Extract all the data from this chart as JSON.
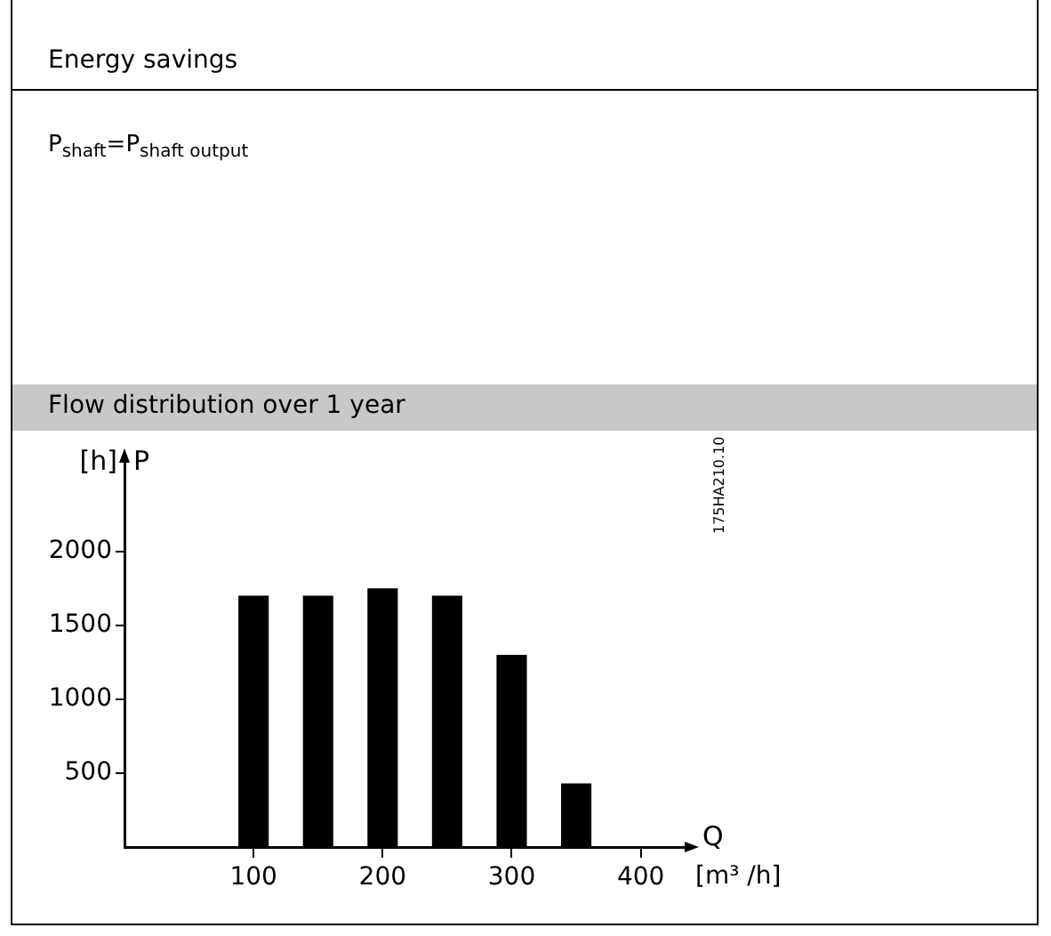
{
  "chart_data": {
    "type": "bar",
    "title": "Energy savings",
    "subtitle": "Flow distribution over 1 year",
    "xlabel": "[m³ /h]",
    "ylabel": "[h]",
    "annotations": [
      "P$_{shaft}$=P$_{shaft output}$",
      "P",
      "Q",
      "175HA210.10"
    ],
    "x": [
      100,
      150,
      200,
      250,
      300,
      350
    ],
    "values": [
      1700,
      1700,
      1750,
      1700,
      1300,
      430
    ],
    "color": "#000000",
    "xlim": [
      0,
      434
    ],
    "xticks": [
      100,
      200,
      300,
      400
    ],
    "ylim": [
      0,
      2600
    ],
    "yticks": [
      500,
      1000,
      1500,
      2000
    ],
    "grid": false,
    "legend": false
  }
}
